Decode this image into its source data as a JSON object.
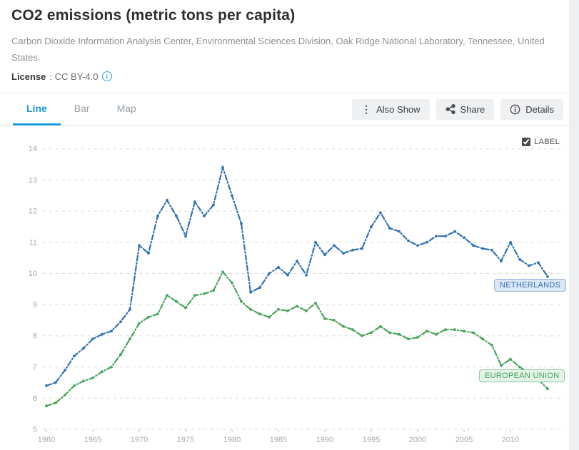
{
  "header": {
    "title": "CO2 emissions (metric tons per capita)",
    "source": "Carbon Dioxide Information Analysis Center, Environmental Sciences Division, Oak Ridge National Laboratory, Tennessee, United States.",
    "license_label": "License",
    "license_value": ": CC BY-4.0",
    "license_info_icon": "info-icon"
  },
  "tabs": [
    {
      "label": "Line",
      "active": true
    },
    {
      "label": "Bar",
      "active": false
    },
    {
      "label": "Map",
      "active": false
    }
  ],
  "toolbar": {
    "also_show_label": "Also Show",
    "also_show_icon": "kebab-icon",
    "share_label": "Share",
    "share_icon": "share-icon",
    "details_label": "Details",
    "details_icon": "info-circle-icon"
  },
  "chart_controls": {
    "label_checkbox_text": "LABEL",
    "label_checkbox_checked": true
  },
  "chart_data": {
    "type": "line",
    "title": "CO2 emissions (metric tons per capita)",
    "xlabel": "",
    "ylabel": "",
    "ylim": [
      5,
      14
    ],
    "yticks": [
      5,
      6,
      7,
      8,
      9,
      10,
      11,
      12,
      13,
      14
    ],
    "xticks": [
      1960,
      1965,
      1970,
      1975,
      1980,
      1985,
      1990,
      1995,
      2000,
      2005,
      2010
    ],
    "grid": "dashed horizontal",
    "legend_position": "inline end-of-line labels",
    "line_style": "dash-dot with point markers",
    "x": [
      1960,
      1961,
      1962,
      1963,
      1964,
      1965,
      1966,
      1967,
      1968,
      1969,
      1970,
      1971,
      1972,
      1973,
      1974,
      1975,
      1976,
      1977,
      1978,
      1979,
      1980,
      1981,
      1982,
      1983,
      1984,
      1985,
      1986,
      1987,
      1988,
      1989,
      1990,
      1991,
      1992,
      1993,
      1994,
      1995,
      1996,
      1997,
      1998,
      1999,
      2000,
      2001,
      2002,
      2003,
      2004,
      2005,
      2006,
      2007,
      2008,
      2009,
      2010,
      2011,
      2012,
      2013,
      2014
    ],
    "series": [
      {
        "id": "netherlands",
        "name": "NETHERLANDS",
        "color": "#3372b5",
        "values": [
          6.4,
          6.5,
          6.9,
          7.35,
          7.6,
          7.9,
          8.05,
          8.15,
          8.45,
          8.85,
          10.9,
          10.65,
          11.85,
          12.35,
          11.85,
          11.2,
          12.3,
          11.85,
          12.2,
          13.4,
          12.5,
          11.6,
          9.4,
          9.55,
          10.0,
          10.2,
          9.95,
          10.4,
          9.95,
          11.0,
          10.6,
          10.9,
          10.65,
          10.75,
          10.8,
          11.5,
          11.95,
          11.45,
          11.35,
          11.05,
          10.9,
          11.0,
          11.2,
          11.2,
          11.35,
          11.15,
          10.9,
          10.8,
          10.75,
          10.4,
          11.0,
          10.45,
          10.25,
          10.35,
          9.9
        ]
      },
      {
        "id": "european-union",
        "name": "EUROPEAN UNION",
        "color": "#4aa45c",
        "values": [
          5.75,
          5.85,
          6.1,
          6.4,
          6.55,
          6.65,
          6.85,
          7.0,
          7.4,
          7.9,
          8.4,
          8.6,
          8.7,
          9.3,
          9.1,
          8.9,
          9.3,
          9.35,
          9.45,
          10.05,
          9.7,
          9.1,
          8.85,
          8.7,
          8.6,
          8.85,
          8.8,
          8.95,
          8.8,
          9.05,
          8.55,
          8.5,
          8.3,
          8.2,
          8.0,
          8.1,
          8.3,
          8.1,
          8.05,
          7.9,
          7.95,
          8.15,
          8.05,
          8.2,
          8.2,
          8.15,
          8.1,
          7.9,
          7.7,
          7.05,
          7.25,
          7.0,
          6.8,
          6.6,
          6.3
        ]
      }
    ]
  }
}
